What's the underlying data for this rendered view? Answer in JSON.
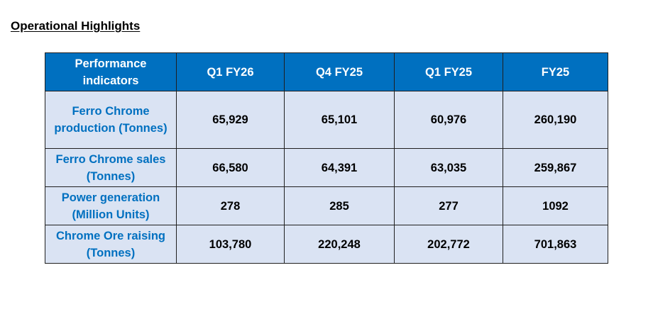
{
  "title": "Operational Highlights",
  "table": {
    "headers": [
      "Performance indicators",
      "Q1 FY26",
      "Q4 FY25",
      "Q1 FY25",
      "FY25"
    ],
    "rows": [
      {
        "label": "Ferro Chrome production (Tonnes)",
        "values": [
          "65,929",
          "65,101",
          "60,976",
          "260,190"
        ]
      },
      {
        "label": "Ferro Chrome sales (Tonnes)",
        "values": [
          "66,580",
          "64,391",
          "63,035",
          "259,867"
        ]
      },
      {
        "label": "Power generation (Million Units)",
        "values": [
          "278",
          "285",
          "277",
          "1092"
        ]
      },
      {
        "label": "Chrome Ore raising (Tonnes)",
        "values": [
          "103,780",
          "220,248",
          "202,772",
          "701,863"
        ]
      }
    ]
  },
  "colors": {
    "header_bg": "#0070c0",
    "header_text": "#ffffff",
    "cell_bg": "#dae3f3",
    "row_label_text": "#0070c0"
  }
}
